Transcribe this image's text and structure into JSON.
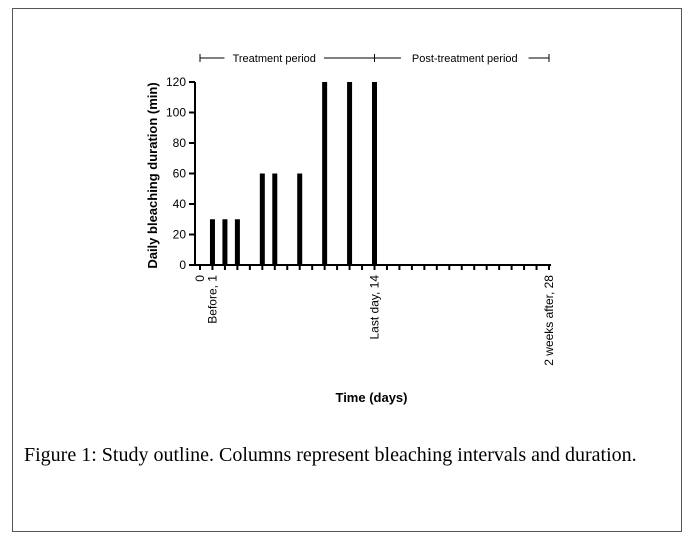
{
  "chart_data": {
    "type": "bar",
    "ylabel": "Daily bleaching duration (min)",
    "xlabel": "Time (days)",
    "ylim": [
      0,
      120
    ],
    "yticks": [
      0,
      20,
      40,
      60,
      80,
      100,
      120
    ],
    "xlim": [
      0,
      28
    ],
    "xtick_labels": [
      {
        "day": 0,
        "label": "0"
      },
      {
        "day": 1,
        "label": "Before, 1"
      },
      {
        "day": 14,
        "label": "Last day, 14"
      },
      {
        "day": 28,
        "label": "2 weeks after, 28"
      }
    ],
    "bars": [
      {
        "day": 1,
        "value": 30
      },
      {
        "day": 2,
        "value": 30
      },
      {
        "day": 3,
        "value": 30
      },
      {
        "day": 5,
        "value": 60
      },
      {
        "day": 6,
        "value": 60
      },
      {
        "day": 8,
        "value": 60
      },
      {
        "day": 10,
        "value": 120
      },
      {
        "day": 12,
        "value": 120
      },
      {
        "day": 14,
        "value": 120
      }
    ],
    "periods": [
      {
        "label": "Treatment period",
        "start": 0,
        "end": 14
      },
      {
        "label": "Post-treatment period",
        "start": 14,
        "end": 28
      }
    ],
    "grid": false
  },
  "caption": {
    "label": "Figure 1:",
    "text": " Study outline. Columns represent bleaching intervals and duration."
  }
}
